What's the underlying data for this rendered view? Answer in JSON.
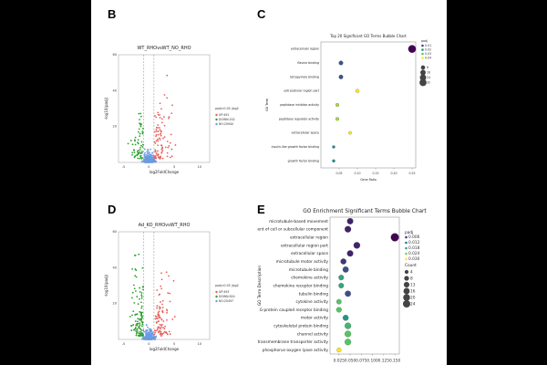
{
  "panels": {
    "B": {
      "letter": "B"
    },
    "C": {
      "letter": "C"
    },
    "D": {
      "letter": "D"
    },
    "E": {
      "letter": "E"
    }
  },
  "chart_data": [
    {
      "id": "B",
      "type": "scatter",
      "title": "WT_RHOvsWT_NO_RHO",
      "xlabel": "log2FoldChange",
      "ylabel": "-log10(padj)",
      "xlim": [
        -6,
        12
      ],
      "ylim": [
        0,
        60
      ],
      "xticks": [
        "-5",
        "0",
        "5",
        "10"
      ],
      "yticks": [
        "",
        "20",
        "40",
        "60"
      ],
      "threshold_x": [
        -1,
        1
      ],
      "legend_title": "padj<0.05 |log2FoldChange|>=1",
      "legend": [
        {
          "name": "UP:491",
          "color": "#e8605a"
        },
        {
          "name": "DOWN:202",
          "color": "#2ca02c"
        },
        {
          "name": "NO:20940",
          "color": "#6c9be0"
        }
      ],
      "legend_position": "right"
    },
    {
      "id": "C",
      "type": "bubble",
      "title": "Top 20 Significant GO Terms Bubble Chart",
      "xlabel": "Gene Ratio",
      "ylabel": "GO Term",
      "xlim": [
        0.0,
        0.26
      ],
      "xticks": [
        "0.05",
        "0.10",
        "0.15",
        "0.20",
        "0.25"
      ],
      "terms": [
        "extracellular region",
        "flavine binding",
        "tetrapyrrole binding",
        "extracellular region part",
        "peptidase inhibitor activity",
        "peptidase regulator activity",
        "extracellular space",
        "insulin-like growth factor binding",
        "growth factor binding"
      ],
      "gene_ratio": [
        0.25,
        0.055,
        0.055,
        0.1,
        0.045,
        0.045,
        0.08,
        0.035,
        0.035
      ],
      "padj": [
        0.001,
        0.011,
        0.011,
        0.04,
        0.035,
        0.035,
        0.04,
        0.02,
        0.02
      ],
      "count": [
        40,
        8,
        8,
        5,
        4,
        4,
        3,
        2,
        2
      ],
      "legend_padj_title": "padj",
      "legend_padj_values": [
        "0.01",
        "0.02",
        "0.03",
        "0.04"
      ],
      "legend_count_values": [
        "8",
        "16",
        "24",
        "32"
      ],
      "legend_position": "right"
    },
    {
      "id": "D",
      "type": "scatter",
      "title": "Ad_KO_RHOvsWT_RHO",
      "xlabel": "log2FoldChange",
      "ylabel": "-log10(padj)",
      "xlim": [
        -6,
        12
      ],
      "ylim": [
        0,
        60
      ],
      "xticks": [
        "-5",
        "0",
        "5",
        "10"
      ],
      "yticks": [
        "",
        "20",
        "40",
        "60"
      ],
      "threshold_x": [
        -1,
        1
      ],
      "legend_title": "padj<0.05 |log2FoldChange|>=1",
      "legend": [
        {
          "name": "UP:493",
          "color": "#e8605a"
        },
        {
          "name": "DOWN:924",
          "color": "#2ca02c"
        },
        {
          "name": "NO:20497",
          "color": "#6c9be0"
        }
      ],
      "legend_position": "right"
    },
    {
      "id": "E",
      "type": "bubble",
      "title": "GO Enrichment Significant Terms Bubble Chart",
      "xlabel": "GeneRatio",
      "ylabel": "GO Term Description",
      "xlim": [
        0.005,
        0.16
      ],
      "xticks": [
        "0.025",
        "0.050",
        "0.075",
        "0.100",
        "0.125",
        "0.150"
      ],
      "terms": [
        "microtubule-based movement",
        "movement of cell or subcellular component",
        "extracellular region",
        "extracellular region part",
        "extracellular space",
        "microtubule motor activity",
        "microtubule binding",
        "chemokine activity",
        "chemokine receptor binding",
        "tubulin binding",
        "cytokine activity",
        "G-protein coupled receptor binding",
        "motor activity",
        "cytoskeletal protein binding",
        "channel activity",
        "passive transmembrane transporter activity",
        "phosphorus-oxygen lyase activity"
      ],
      "gene_ratio": [
        0.05,
        0.045,
        0.15,
        0.065,
        0.05,
        0.035,
        0.04,
        0.03,
        0.03,
        0.045,
        0.025,
        0.025,
        0.04,
        0.045,
        0.045,
        0.045,
        0.025
      ],
      "padj": [
        0.004,
        0.004,
        0.001,
        0.004,
        0.004,
        0.006,
        0.008,
        0.018,
        0.018,
        0.008,
        0.022,
        0.022,
        0.016,
        0.02,
        0.022,
        0.022,
        0.03
      ],
      "count": [
        12,
        13,
        24,
        14,
        12,
        10,
        11,
        8,
        8,
        11,
        7,
        8,
        10,
        13,
        13,
        13,
        5
      ],
      "legend_padj_title": "padj",
      "legend_padj_values": [
        "0.006",
        "0.012",
        "0.018",
        "0.024",
        "0.030"
      ],
      "legend_count_title": "Count",
      "legend_count_values": [
        "4",
        "8",
        "13",
        "16",
        "20",
        "24"
      ],
      "legend_position": "right"
    }
  ]
}
